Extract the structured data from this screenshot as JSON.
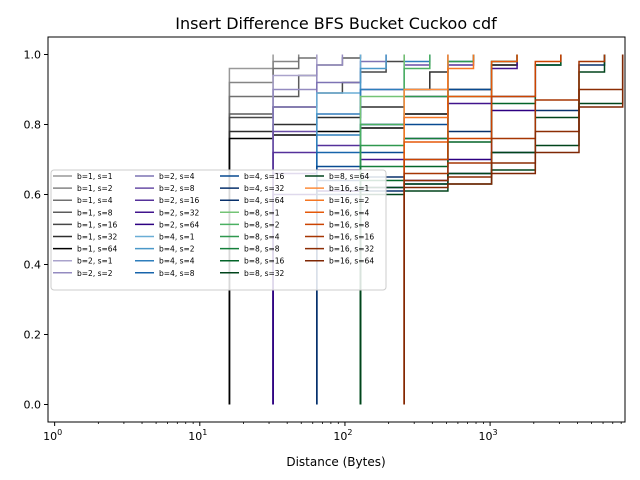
{
  "chart_data": {
    "type": "line",
    "title": "Insert Difference BFS Bucket Cuckoo cdf",
    "xlabel": "Distance (Bytes)",
    "ylabel": "",
    "xscale": "log",
    "xlim": [
      0.9,
      8500
    ],
    "ylim": [
      -0.05,
      1.05
    ],
    "xticks": [
      {
        "value": 1,
        "base": "10",
        "exp": "0"
      },
      {
        "value": 10,
        "base": "10",
        "exp": "1"
      },
      {
        "value": 100,
        "base": "10",
        "exp": "2"
      },
      {
        "value": 1000,
        "base": "10",
        "exp": "3"
      }
    ],
    "yticks": [
      {
        "value": 0,
        "label": "0.0"
      },
      {
        "value": 0.2,
        "label": "0.2"
      },
      {
        "value": 0.4,
        "label": "0.4"
      },
      {
        "value": 0.6,
        "label": "0.6"
      },
      {
        "value": 0.8,
        "label": "0.8"
      },
      {
        "value": 1.0,
        "label": "1.0"
      }
    ],
    "grid": false,
    "legend": {
      "placement": "center-left",
      "columns": 4
    },
    "series": [
      {
        "name": "b=1, s=1",
        "color": "#999999",
        "x": [
          16,
          32
        ],
        "y": [
          0.96,
          1.0
        ]
      },
      {
        "name": "b=1, s=2",
        "color": "#858585",
        "x": [
          16,
          32,
          48
        ],
        "y": [
          0.92,
          0.98,
          1.0
        ]
      },
      {
        "name": "b=1, s=4",
        "color": "#707070",
        "x": [
          16,
          32,
          48,
          64
        ],
        "y": [
          0.88,
          0.96,
          0.99,
          1.0
        ]
      },
      {
        "name": "b=1, s=8",
        "color": "#5c5c5c",
        "x": [
          16,
          32,
          48,
          64,
          96,
          128
        ],
        "y": [
          0.83,
          0.88,
          0.94,
          0.97,
          0.99,
          1.0
        ]
      },
      {
        "name": "b=1, s=16",
        "color": "#474747",
        "x": [
          16,
          32,
          64,
          96,
          128,
          192,
          256
        ],
        "y": [
          0.82,
          0.85,
          0.89,
          0.92,
          0.95,
          0.98,
          1.0
        ]
      },
      {
        "name": "b=1, s=32",
        "color": "#2e2e2e",
        "x": [
          16,
          32,
          64,
          128,
          256,
          384,
          512
        ],
        "y": [
          0.78,
          0.8,
          0.82,
          0.85,
          0.9,
          0.95,
          1.0
        ]
      },
      {
        "name": "b=1, s=64",
        "color": "#000000",
        "x": [
          16,
          32,
          64,
          128,
          256,
          512,
          1024,
          1536
        ],
        "y": [
          0.76,
          0.77,
          0.78,
          0.79,
          0.83,
          0.9,
          0.97,
          1.0
        ]
      },
      {
        "name": "b=2, s=1",
        "color": "#aaa3cc",
        "x": [
          32,
          64
        ],
        "y": [
          0.94,
          1.0
        ]
      },
      {
        "name": "b=2, s=2",
        "color": "#948bc0",
        "x": [
          32,
          64,
          96
        ],
        "y": [
          0.9,
          0.97,
          1.0
        ]
      },
      {
        "name": "b=2, s=4",
        "color": "#7d73b4",
        "x": [
          32,
          64,
          128,
          192
        ],
        "y": [
          0.85,
          0.92,
          0.98,
          1.0
        ]
      },
      {
        "name": "b=2, s=8",
        "color": "#6a4ea6",
        "x": [
          32,
          64,
          128,
          256,
          384
        ],
        "y": [
          0.78,
          0.83,
          0.9,
          0.97,
          1.0
        ]
      },
      {
        "name": "b=2, s=16",
        "color": "#55319a",
        "x": [
          32,
          64,
          128,
          256,
          512,
          768
        ],
        "y": [
          0.72,
          0.74,
          0.8,
          0.88,
          0.97,
          1.0
        ]
      },
      {
        "name": "b=2, s=32",
        "color": "#41148d",
        "x": [
          32,
          64,
          128,
          256,
          512,
          1024,
          1536
        ],
        "y": [
          0.66,
          0.67,
          0.7,
          0.76,
          0.86,
          0.96,
          1.0
        ]
      },
      {
        "name": "b=2, s=64",
        "color": "#2d0081",
        "x": [
          32,
          64,
          128,
          256,
          512,
          1024,
          2048,
          3072
        ],
        "y": [
          0.6,
          0.61,
          0.62,
          0.64,
          0.7,
          0.84,
          0.97,
          1.0
        ]
      },
      {
        "name": "b=4, s=1",
        "color": "#6aaed6",
        "x": [
          64,
          128
        ],
        "y": [
          0.89,
          1.0
        ]
      },
      {
        "name": "b=4, s=2",
        "color": "#4a98c9",
        "x": [
          64,
          128,
          192
        ],
        "y": [
          0.83,
          0.96,
          1.0
        ]
      },
      {
        "name": "b=4, s=4",
        "color": "#2e7ebc",
        "x": [
          64,
          128,
          256,
          384
        ],
        "y": [
          0.77,
          0.9,
          0.98,
          1.0
        ]
      },
      {
        "name": "b=4, s=8",
        "color": "#1764ab",
        "x": [
          64,
          128,
          256,
          512,
          768
        ],
        "y": [
          0.72,
          0.8,
          0.9,
          0.98,
          1.0
        ]
      },
      {
        "name": "b=4, s=16",
        "color": "#084a91",
        "x": [
          64,
          128,
          256,
          512,
          1024,
          1536
        ],
        "y": [
          0.68,
          0.72,
          0.8,
          0.9,
          0.98,
          1.0
        ]
      },
      {
        "name": "b=4, s=32",
        "color": "#08306b",
        "x": [
          64,
          128,
          256,
          512,
          1024,
          2048,
          3072
        ],
        "y": [
          0.64,
          0.65,
          0.7,
          0.78,
          0.88,
          0.97,
          1.0
        ]
      },
      {
        "name": "b=4, s=64",
        "color": "#08306b",
        "x": [
          64,
          128,
          256,
          512,
          1024,
          2048,
          4096,
          6144
        ],
        "y": [
          0.6,
          0.61,
          0.63,
          0.66,
          0.72,
          0.84,
          0.97,
          1.0
        ]
      },
      {
        "name": "b=8, s=1",
        "color": "#74c476",
        "x": [
          128,
          256
        ],
        "y": [
          0.88,
          1.0
        ]
      },
      {
        "name": "b=8, s=2",
        "color": "#4bb062",
        "x": [
          128,
          256,
          384
        ],
        "y": [
          0.8,
          0.96,
          1.0
        ]
      },
      {
        "name": "b=8, s=4",
        "color": "#2f984f",
        "x": [
          128,
          256,
          512,
          768
        ],
        "y": [
          0.74,
          0.88,
          0.98,
          1.0
        ]
      },
      {
        "name": "b=8, s=8",
        "color": "#157f3b",
        "x": [
          128,
          256,
          512,
          1024,
          1536
        ],
        "y": [
          0.68,
          0.76,
          0.88,
          0.98,
          1.0
        ]
      },
      {
        "name": "b=8, s=16",
        "color": "#036429",
        "x": [
          128,
          256,
          512,
          1024,
          2048,
          3072
        ],
        "y": [
          0.64,
          0.68,
          0.75,
          0.86,
          0.97,
          1.0
        ]
      },
      {
        "name": "b=8, s=32",
        "color": "#00441b",
        "x": [
          128,
          256,
          512,
          1024,
          2048,
          4096,
          6144
        ],
        "y": [
          0.62,
          0.63,
          0.66,
          0.72,
          0.82,
          0.95,
          1.0
        ]
      },
      {
        "name": "b=8, s=64",
        "color": "#00441b",
        "x": [
          128,
          256,
          512,
          1024,
          2048,
          4096,
          8192
        ],
        "y": [
          0.6,
          0.61,
          0.63,
          0.67,
          0.74,
          0.86,
          1.0
        ]
      },
      {
        "name": "b=16, s=1",
        "color": "#fd8d3c",
        "x": [
          256,
          512
        ],
        "y": [
          0.9,
          1.0
        ]
      },
      {
        "name": "b=16, s=2",
        "color": "#f57622",
        "x": [
          256,
          512,
          768
        ],
        "y": [
          0.82,
          0.96,
          1.0
        ]
      },
      {
        "name": "b=16, s=4",
        "color": "#e5590a",
        "x": [
          256,
          512,
          1024,
          1536
        ],
        "y": [
          0.75,
          0.88,
          0.98,
          1.0
        ]
      },
      {
        "name": "b=16, s=8",
        "color": "#cb4301",
        "x": [
          256,
          512,
          1024,
          2048,
          3072
        ],
        "y": [
          0.7,
          0.76,
          0.88,
          0.98,
          1.0
        ]
      },
      {
        "name": "b=16, s=16",
        "color": "#a63603",
        "x": [
          256,
          512,
          1024,
          2048,
          4096,
          6144
        ],
        "y": [
          0.66,
          0.69,
          0.76,
          0.87,
          0.98,
          1.0
        ]
      },
      {
        "name": "b=16, s=32",
        "color": "#8c2d04",
        "x": [
          256,
          512,
          1024,
          2048,
          4096,
          8192
        ],
        "y": [
          0.64,
          0.65,
          0.69,
          0.78,
          0.9,
          1.0
        ]
      },
      {
        "name": "b=16, s=64",
        "color": "#7f2704",
        "x": [
          256,
          512,
          1024,
          2048,
          4096,
          8192
        ],
        "y": [
          0.62,
          0.63,
          0.66,
          0.72,
          0.85,
          1.0
        ]
      }
    ]
  }
}
